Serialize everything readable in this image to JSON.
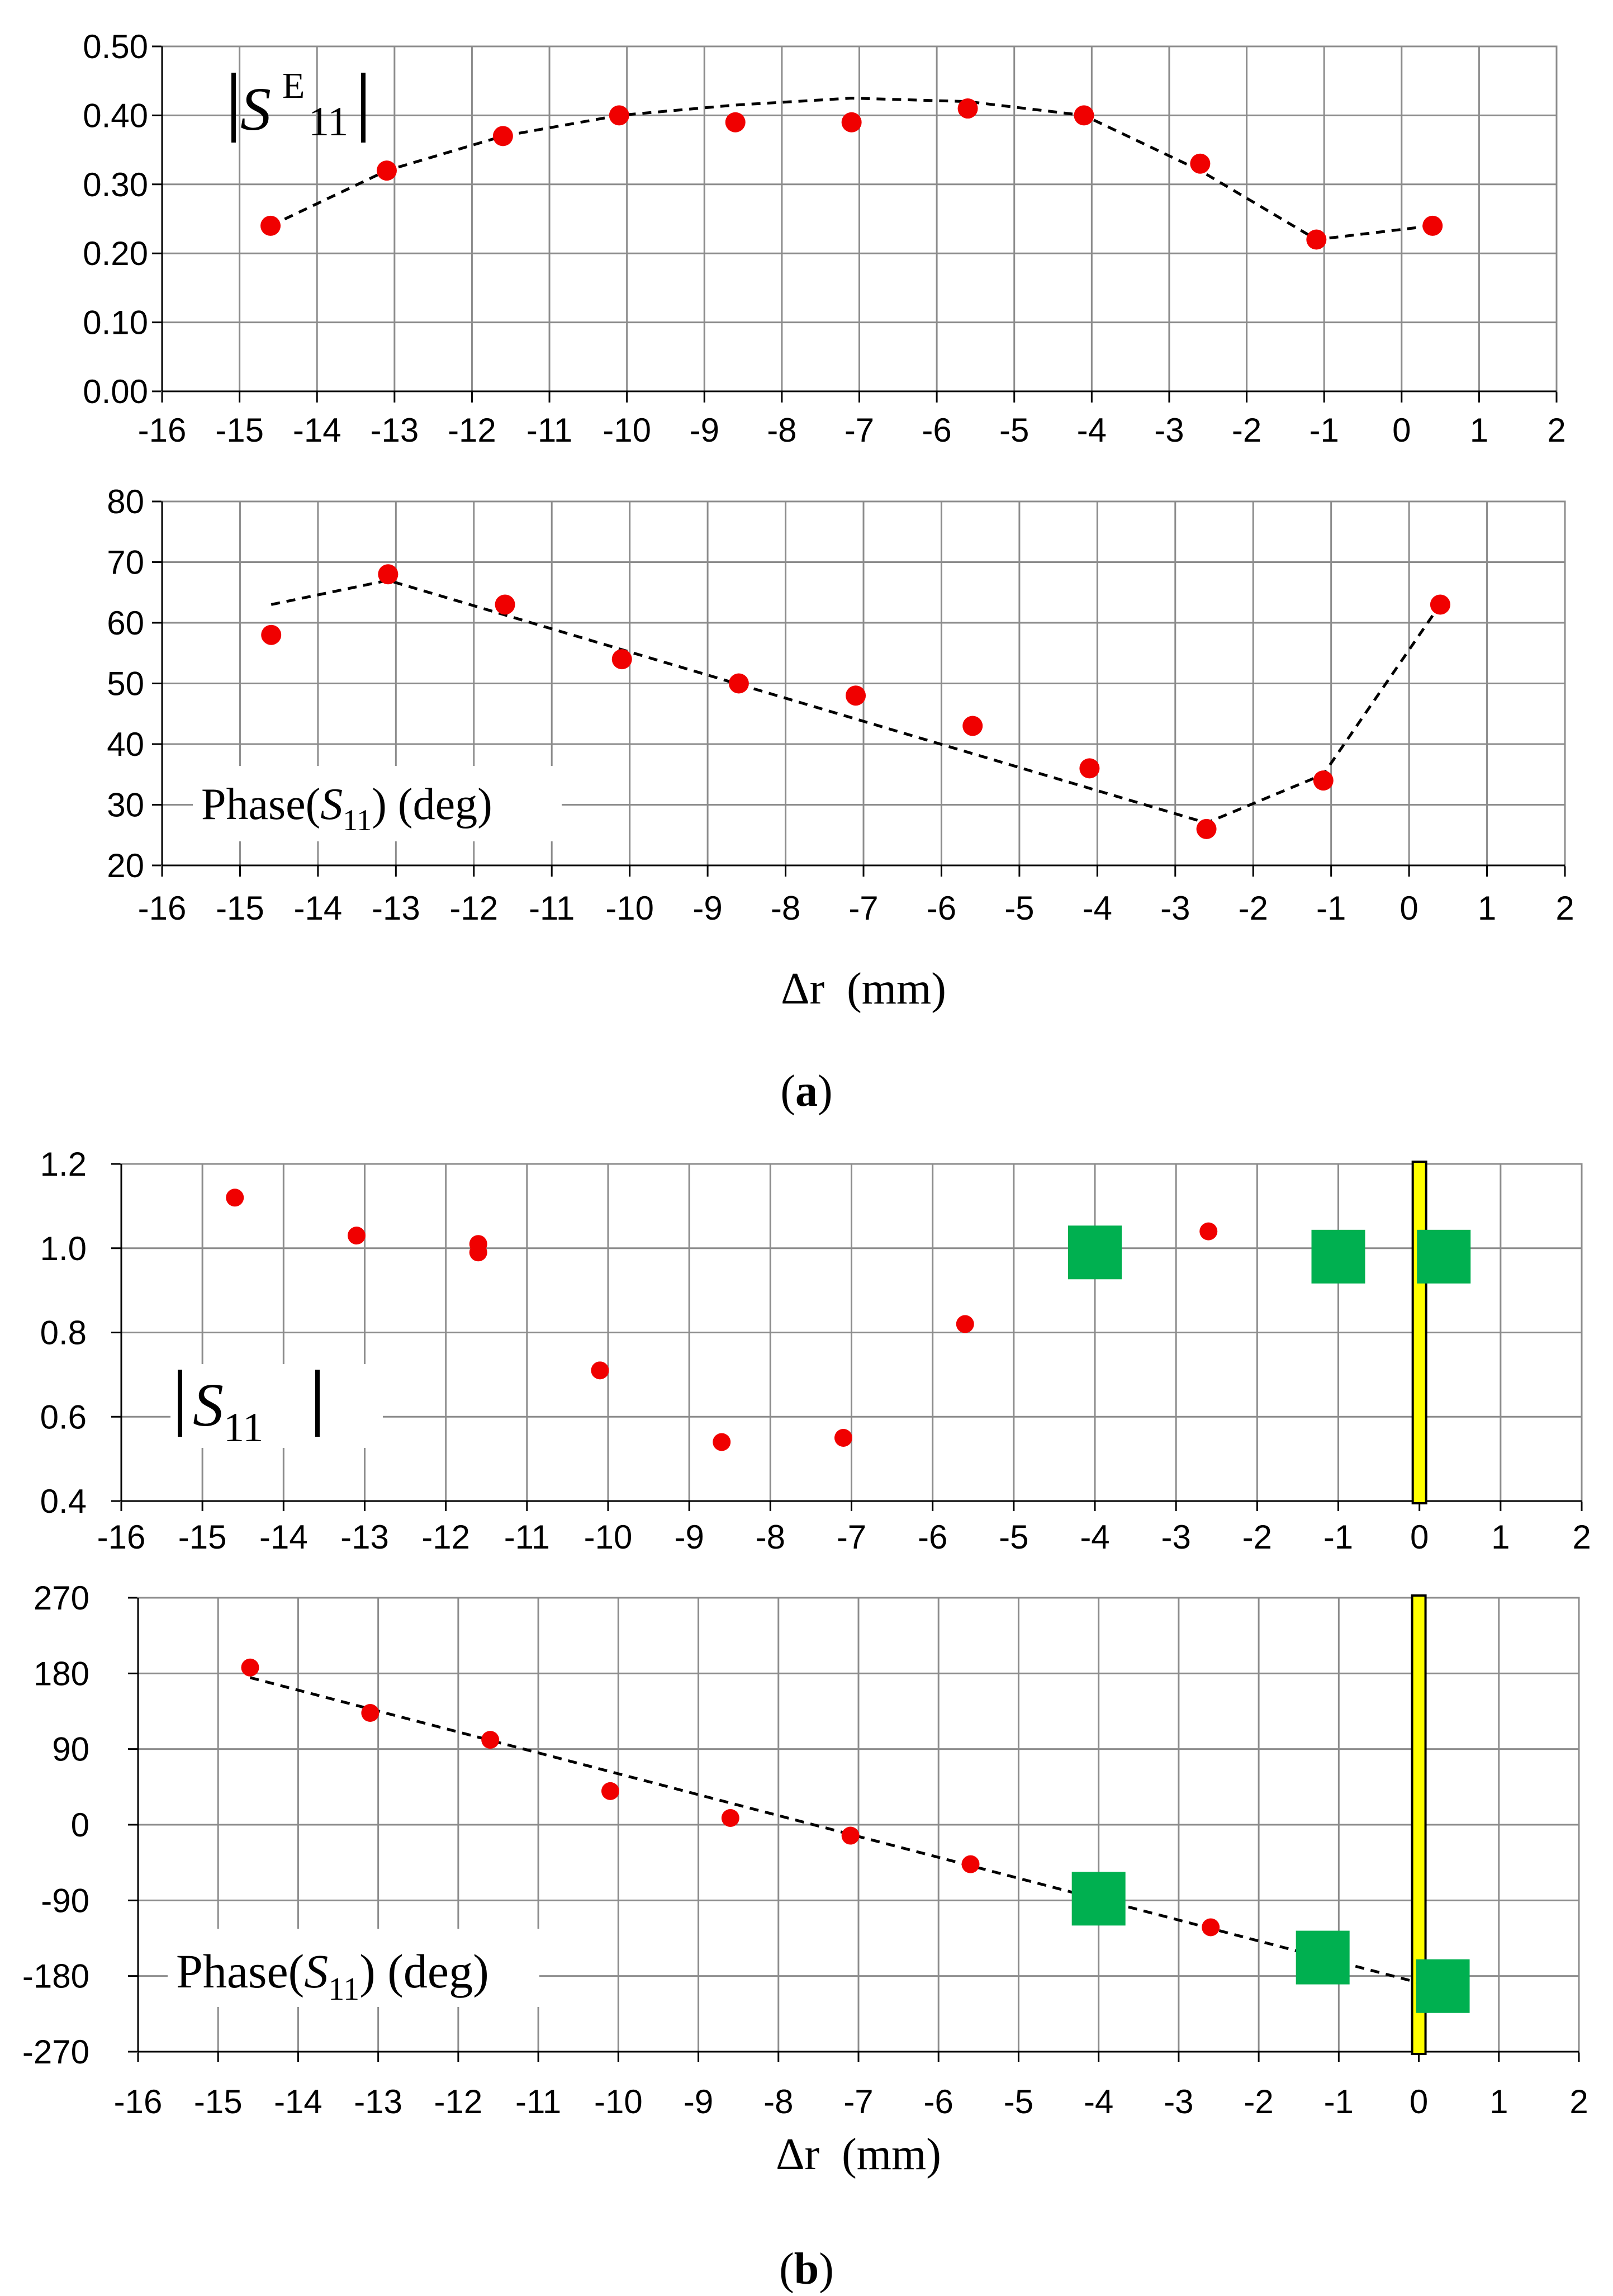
{
  "chart_data": [
    {
      "id": "a-top",
      "type": "scatter",
      "label": "|SE11|",
      "x": [
        -14.6,
        -13.1,
        -11.6,
        -10.1,
        -8.6,
        -7.1,
        -5.6,
        -4.1,
        -2.6,
        -1.1,
        0.4
      ],
      "y": [
        0.24,
        0.32,
        0.37,
        0.4,
        0.39,
        0.39,
        0.41,
        0.4,
        0.33,
        0.22,
        0.24
      ],
      "fit": {
        "x": [
          -14.6,
          -13.1,
          -11.6,
          -10.1,
          -8.6,
          -7.1,
          -5.6,
          -4.1,
          -2.6,
          -1.1,
          0.4
        ],
        "y": [
          0.24,
          0.32,
          0.37,
          0.4,
          0.415,
          0.425,
          0.42,
          0.4,
          0.32,
          0.22,
          0.24
        ]
      },
      "xlim": [
        -16,
        2
      ],
      "ylim": [
        0,
        0.5
      ],
      "xticks": [
        "-16",
        "-15",
        "-14",
        "-13",
        "-12",
        "-11",
        "-10",
        "-9",
        "-8",
        "-7",
        "-6",
        "-5",
        "-4",
        "-3",
        "-2",
        "-1",
        "0",
        "1",
        "2"
      ],
      "yticks": [
        "0.00",
        "0.10",
        "0.20",
        "0.30",
        "0.40",
        "0.50"
      ],
      "xlabel": ""
    },
    {
      "id": "a-bottom",
      "type": "scatter",
      "label": "Phase(S11) (deg)",
      "x": [
        -14.6,
        -13.1,
        -11.6,
        -10.1,
        -8.6,
        -7.1,
        -5.6,
        -4.1,
        -2.6,
        -1.1,
        0.4
      ],
      "y": [
        58,
        68,
        63,
        54,
        50,
        48,
        43,
        36,
        26,
        34,
        63
      ],
      "fit": {
        "x": [
          -14.6,
          -13.1,
          -2.6,
          -1.1,
          0.4
        ],
        "y": [
          63,
          67,
          27,
          35,
          63
        ]
      },
      "xlim": [
        -16,
        2
      ],
      "ylim": [
        20,
        80
      ],
      "xticks": [
        "-16",
        "-15",
        "-14",
        "-13",
        "-12",
        "-11",
        "-10",
        "-9",
        "-8",
        "-7",
        "-6",
        "-5",
        "-4",
        "-3",
        "-2",
        "-1",
        "0",
        "1",
        "2"
      ],
      "yticks": [
        "20",
        "30",
        "40",
        "50",
        "60",
        "70",
        "80"
      ],
      "xlabel": "Δr  (mm)"
    },
    {
      "id": "b-top",
      "type": "scatter",
      "label": "|S11|",
      "x": [
        -14.6,
        -13.1,
        -11.6,
        -11.6,
        -10.1,
        -8.6,
        -7.1,
        -5.6,
        -2.6
      ],
      "y": [
        1.12,
        1.03,
        1.01,
        0.99,
        0.71,
        0.54,
        0.55,
        0.82,
        1.04
      ],
      "squares": {
        "x": [
          -4.0,
          -1.0,
          0.3
        ],
        "y": [
          0.99,
          0.98,
          0.98
        ]
      },
      "marker_line_x": 0,
      "xlim": [
        -16,
        2
      ],
      "ylim": [
        0.4,
        1.2
      ],
      "xticks": [
        "-16",
        "-15",
        "-14",
        "-13",
        "-12",
        "-11",
        "-10",
        "-9",
        "-8",
        "-7",
        "-6",
        "-5",
        "-4",
        "-3",
        "-2",
        "-1",
        "0",
        "1",
        "2"
      ],
      "yticks": [
        "0.4",
        "0.6",
        "0.8",
        "1.0",
        "1.2"
      ],
      "xlabel": ""
    },
    {
      "id": "b-bottom",
      "type": "scatter",
      "label": "Phase(S11) (deg)",
      "x": [
        -14.6,
        -13.1,
        -11.6,
        -10.1,
        -8.6,
        -7.1,
        -5.6,
        -2.6
      ],
      "y": [
        187,
        133,
        101,
        40,
        8,
        -13,
        -47,
        -122
      ],
      "squares": {
        "x": [
          -4.0,
          -1.2,
          0.3
        ],
        "y": [
          -88,
          -158,
          -192
        ]
      },
      "fit": {
        "x": [
          -14.6,
          0
        ],
        "y": [
          175,
          -188
        ]
      },
      "marker_line_x": 0,
      "xlim": [
        -16,
        2
      ],
      "ylim": [
        -270,
        270
      ],
      "xticks": [
        "-16",
        "-15",
        "-14",
        "-13",
        "-12",
        "-11",
        "-10",
        "-9",
        "-8",
        "-7",
        "-6",
        "-5",
        "-4",
        "-3",
        "-2",
        "-1",
        "0",
        "1",
        "2"
      ],
      "yticks": [
        "-270",
        "-180",
        "-90",
        "0",
        "90",
        "180",
        "270"
      ],
      "xlabel": "Δr  (mm)"
    }
  ],
  "captions": {
    "a": "a",
    "b": "b"
  },
  "colors": {
    "point": "#f00000",
    "square": "#00b050",
    "marker_line": "#ffff00"
  }
}
